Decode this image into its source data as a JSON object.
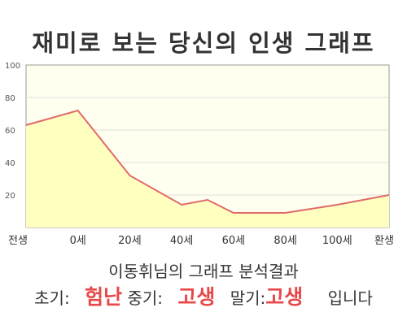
{
  "title": "재미로 보는 당신의 인생 그래프",
  "chart_data": {
    "type": "area",
    "x_labels": [
      "전생",
      "0세",
      "20세",
      "40세",
      "60세",
      "80세",
      "100세",
      "환생"
    ],
    "y_ticks": [
      20,
      40,
      60,
      80,
      100
    ],
    "ylim": [
      0,
      100
    ],
    "grid": true,
    "colors": {
      "line": "#e06a6a",
      "fill": "#ffffc0",
      "plot_bg": "#fffff0",
      "grid": "#dddddd"
    },
    "series": [
      {
        "points": [
          {
            "x": "전생",
            "y": 63
          },
          {
            "x": "0세",
            "y": 72
          },
          {
            "x": "20세",
            "y": 32
          },
          {
            "x": "40세",
            "y": 14
          },
          {
            "x": "50세",
            "y": 17
          },
          {
            "x": "60세",
            "y": 9
          },
          {
            "x": "80세",
            "y": 9
          },
          {
            "x": "100세",
            "y": 14
          },
          {
            "x": "환생",
            "y": 20
          }
        ]
      }
    ]
  },
  "result": {
    "heading": "이동휘님의 그래프 분석결과",
    "early_label": "초기:",
    "early_value": "험난",
    "middle_label": "중기:",
    "middle_value": "고생",
    "late_label": "말기:",
    "late_value": "고생",
    "suffix": "입니다"
  }
}
